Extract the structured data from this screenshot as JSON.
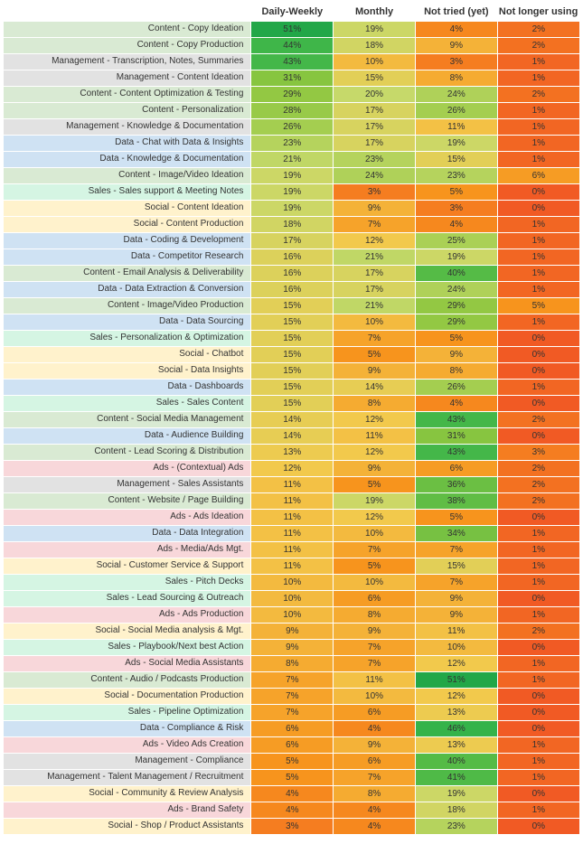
{
  "table": {
    "type": "heatmap-table",
    "headers": [
      "Daily-Weekly",
      "Monthly",
      "Not tried (yet)",
      "Not longer using"
    ],
    "label_fontsize": 10,
    "header_fontsize": 11,
    "cell_fontsize": 10,
    "background": "#ffffff",
    "text_color": "#333333",
    "value_scale": {
      "stops": [
        {
          "at": 0,
          "color": "#f15a24"
        },
        {
          "at": 5,
          "color": "#f7941d"
        },
        {
          "at": 12,
          "color": "#f2c94c"
        },
        {
          "at": 20,
          "color": "#c6d96a"
        },
        {
          "at": 30,
          "color": "#8dc63f"
        },
        {
          "at": 45,
          "color": "#39b54a"
        },
        {
          "at": 60,
          "color": "#009245"
        }
      ]
    },
    "label_categories": {
      "Content": "#d9ead3",
      "Management": "#e2e2e2",
      "Data": "#cfe2f3",
      "Sales": "#d5f5e3",
      "Social": "#fff2cc",
      "Ads": "#f8d7da"
    },
    "rows": [
      {
        "label": "Content - Copy Ideation",
        "cat": "Content",
        "vals": [
          51,
          19,
          4,
          2
        ]
      },
      {
        "label": "Content - Copy Production",
        "cat": "Content",
        "vals": [
          44,
          18,
          9,
          2
        ]
      },
      {
        "label": "Management - Transcription, Notes, Summaries",
        "cat": "Management",
        "vals": [
          43,
          10,
          3,
          1
        ]
      },
      {
        "label": "Management - Content Ideation",
        "cat": "Management",
        "vals": [
          31,
          15,
          8,
          1
        ]
      },
      {
        "label": "Content - Content Optimization & Testing",
        "cat": "Content",
        "vals": [
          29,
          20,
          24,
          2
        ]
      },
      {
        "label": "Content - Personalization",
        "cat": "Content",
        "vals": [
          28,
          17,
          26,
          1
        ]
      },
      {
        "label": "Management - Knowledge & Documentation",
        "cat": "Management",
        "vals": [
          26,
          17,
          11,
          1
        ]
      },
      {
        "label": "Data - Chat with Data & Insights",
        "cat": "Data",
        "vals": [
          23,
          17,
          19,
          1
        ]
      },
      {
        "label": "Data - Knowledge & Documentation",
        "cat": "Data",
        "vals": [
          21,
          23,
          15,
          1
        ]
      },
      {
        "label": "Content - Image/Video Ideation",
        "cat": "Content",
        "vals": [
          19,
          24,
          23,
          6
        ]
      },
      {
        "label": "Sales - Sales support & Meeting Notes",
        "cat": "Sales",
        "vals": [
          19,
          3,
          5,
          0
        ]
      },
      {
        "label": "Social - Content Ideation",
        "cat": "Social",
        "vals": [
          19,
          9,
          3,
          0
        ]
      },
      {
        "label": "Social - Content Production",
        "cat": "Social",
        "vals": [
          18,
          7,
          4,
          1
        ]
      },
      {
        "label": "Data - Coding & Development",
        "cat": "Data",
        "vals": [
          17,
          12,
          25,
          1
        ]
      },
      {
        "label": "Data - Competitor Research",
        "cat": "Data",
        "vals": [
          16,
          21,
          19,
          1
        ]
      },
      {
        "label": "Content - Email Analysis & Deliverability",
        "cat": "Content",
        "vals": [
          16,
          17,
          40,
          1
        ]
      },
      {
        "label": "Data - Data Extraction & Conversion",
        "cat": "Data",
        "vals": [
          16,
          17,
          24,
          1
        ]
      },
      {
        "label": "Content - Image/Video Production",
        "cat": "Content",
        "vals": [
          15,
          21,
          29,
          5
        ]
      },
      {
        "label": "Data - Data Sourcing",
        "cat": "Data",
        "vals": [
          15,
          10,
          29,
          1
        ]
      },
      {
        "label": "Sales - Personalization & Optimization",
        "cat": "Sales",
        "vals": [
          15,
          7,
          5,
          0
        ]
      },
      {
        "label": "Social - Chatbot",
        "cat": "Social",
        "vals": [
          15,
          5,
          9,
          0
        ]
      },
      {
        "label": "Social - Data Insights",
        "cat": "Social",
        "vals": [
          15,
          9,
          8,
          0
        ]
      },
      {
        "label": "Data - Dashboards",
        "cat": "Data",
        "vals": [
          15,
          14,
          26,
          1
        ]
      },
      {
        "label": "Sales - Sales Content",
        "cat": "Sales",
        "vals": [
          15,
          8,
          4,
          0
        ]
      },
      {
        "label": "Content - Social Media Management",
        "cat": "Content",
        "vals": [
          14,
          12,
          43,
          2
        ]
      },
      {
        "label": "Data - Audience Building",
        "cat": "Data",
        "vals": [
          14,
          11,
          31,
          0
        ]
      },
      {
        "label": "Content - Lead Scoring & Distribution",
        "cat": "Content",
        "vals": [
          13,
          12,
          43,
          3
        ]
      },
      {
        "label": "Ads - (Contextual) Ads",
        "cat": "Ads",
        "vals": [
          12,
          9,
          6,
          2
        ]
      },
      {
        "label": "Management - Sales Assistants",
        "cat": "Management",
        "vals": [
          11,
          5,
          36,
          2
        ]
      },
      {
        "label": "Content - Website / Page Building",
        "cat": "Content",
        "vals": [
          11,
          19,
          38,
          2
        ]
      },
      {
        "label": "Ads - Ads Ideation",
        "cat": "Ads",
        "vals": [
          11,
          12,
          5,
          0
        ]
      },
      {
        "label": "Data - Data Integration",
        "cat": "Data",
        "vals": [
          11,
          10,
          34,
          1
        ]
      },
      {
        "label": "Ads - Media/Ads Mgt.",
        "cat": "Ads",
        "vals": [
          11,
          7,
          7,
          1
        ]
      },
      {
        "label": "Social - Customer Service & Support",
        "cat": "Social",
        "vals": [
          11,
          5,
          15,
          1
        ]
      },
      {
        "label": "Sales - Pitch Decks",
        "cat": "Sales",
        "vals": [
          10,
          10,
          7,
          1
        ]
      },
      {
        "label": "Sales - Lead Sourcing & Outreach",
        "cat": "Sales",
        "vals": [
          10,
          6,
          9,
          0
        ]
      },
      {
        "label": "Ads - Ads Production",
        "cat": "Ads",
        "vals": [
          10,
          8,
          9,
          1
        ]
      },
      {
        "label": "Social - Social Media analysis & Mgt.",
        "cat": "Social",
        "vals": [
          9,
          9,
          11,
          2
        ]
      },
      {
        "label": "Sales - Playbook/Next best Action",
        "cat": "Sales",
        "vals": [
          9,
          7,
          10,
          0
        ]
      },
      {
        "label": "Ads - Social Media Assistants",
        "cat": "Ads",
        "vals": [
          8,
          7,
          12,
          1
        ]
      },
      {
        "label": "Content - Audio / Podcasts Production",
        "cat": "Content",
        "vals": [
          7,
          11,
          51,
          1
        ]
      },
      {
        "label": "Social - Documentation Production",
        "cat": "Social",
        "vals": [
          7,
          10,
          12,
          0
        ]
      },
      {
        "label": "Sales - Pipeline Optimization",
        "cat": "Sales",
        "vals": [
          7,
          6,
          13,
          0
        ]
      },
      {
        "label": "Data - Compliance & Risk",
        "cat": "Data",
        "vals": [
          6,
          4,
          46,
          0
        ]
      },
      {
        "label": "Ads - Video Ads Creation",
        "cat": "Ads",
        "vals": [
          6,
          9,
          13,
          1
        ]
      },
      {
        "label": "Management - Compliance",
        "cat": "Management",
        "vals": [
          5,
          6,
          40,
          1
        ]
      },
      {
        "label": "Management - Talent Management / Recruitment",
        "cat": "Management",
        "vals": [
          5,
          7,
          41,
          1
        ]
      },
      {
        "label": "Social - Community & Review Analysis",
        "cat": "Social",
        "vals": [
          4,
          8,
          19,
          0
        ]
      },
      {
        "label": "Ads - Brand Safety",
        "cat": "Ads",
        "vals": [
          4,
          4,
          18,
          1
        ]
      },
      {
        "label": "Social - Shop / Product Assistants",
        "cat": "Social",
        "vals": [
          3,
          4,
          23,
          0
        ]
      }
    ]
  }
}
